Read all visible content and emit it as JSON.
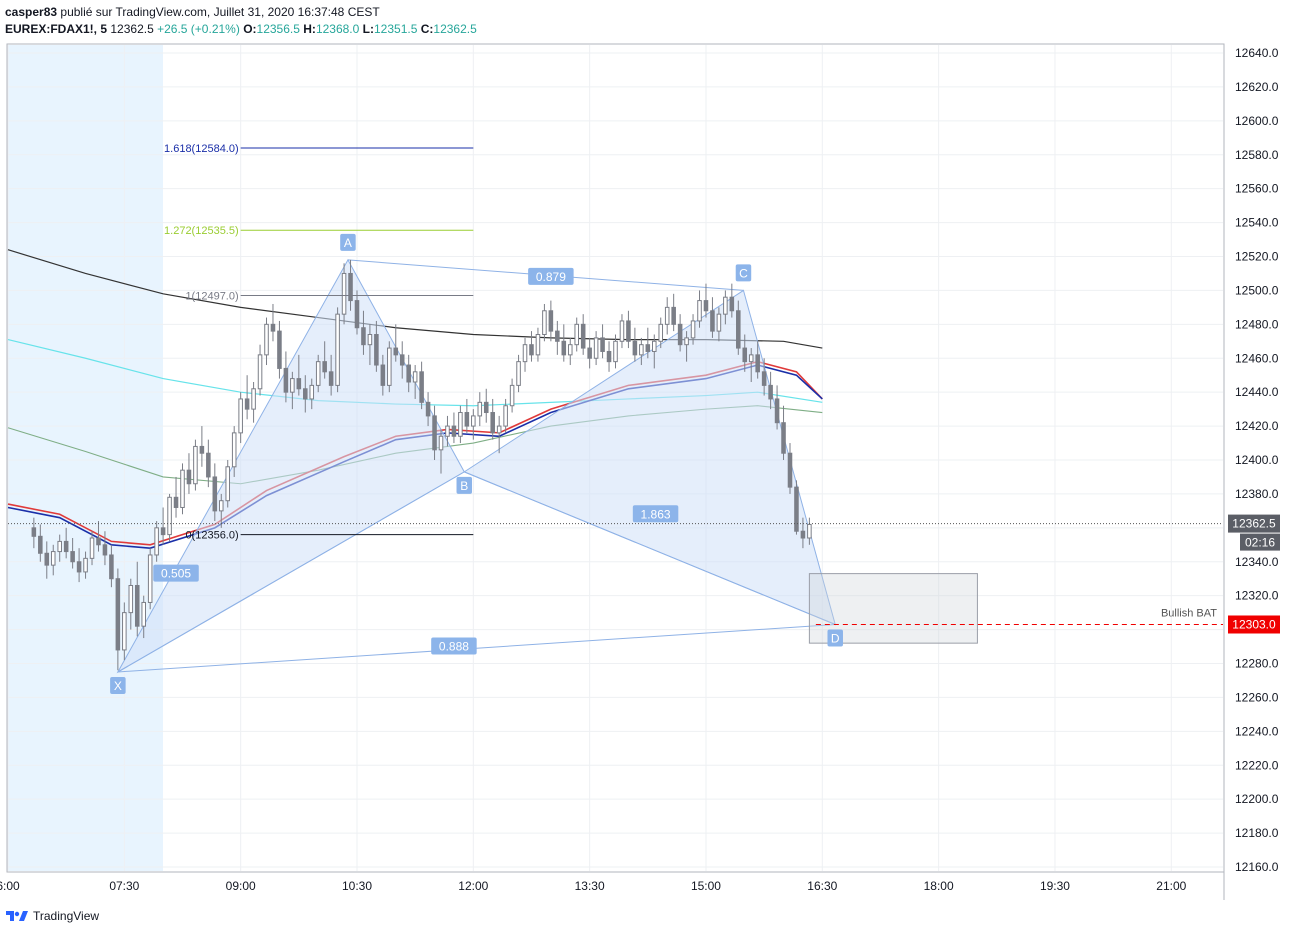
{
  "header": {
    "publisher": "casper83",
    "published_text": "publié sur TradingView.com, Juillet 31, 2020 16:37:48 CEST",
    "symbol": "EUREX:FDAX1!, 5",
    "last": "12362.5",
    "change": "+26.5 (+0.21%)",
    "o_label": "O:",
    "o_value": "12356.5",
    "h_label": "H:",
    "h_value": "12368.0",
    "l_label": "L:",
    "l_value": "12351.5",
    "c_label": "C:",
    "c_value": "12362.5"
  },
  "footer": {
    "brand": "TradingView",
    "logo_icon": "tradingview-logo-icon"
  },
  "colors": {
    "grid": "#eef0f3",
    "candle": "#7b7e87",
    "session_bg": "#e8f4fe",
    "pattern_fill": "#cfe0f7",
    "pattern_line": "#8fb2e6",
    "badge": "#8cb4ea",
    "black_ma": "#333333",
    "cyan_ma": "#67e3ea",
    "green_ma": "#7fae86",
    "red_ma": "#e03a3a",
    "blue_ma": "#1a2fa8",
    "price_tag": "#f00000"
  },
  "chart_data": {
    "type": "candlestick",
    "symbol": "EUREX:FDAX1!",
    "interval": "5",
    "ylim": [
      12160,
      12640
    ],
    "y_ticks": [
      "12640.0",
      "12620.0",
      "12600.0",
      "12580.0",
      "12560.0",
      "12540.0",
      "12520.0",
      "12500.0",
      "12480.0",
      "12460.0",
      "12440.0",
      "12420.0",
      "12400.0",
      "12380.0",
      "12360.0",
      "12340.0",
      "12320.0",
      "12300.0",
      "12280.0",
      "12260.0",
      "12240.0",
      "12220.0",
      "12200.0",
      "12180.0",
      "12160.0"
    ],
    "x_ticks": [
      "6:00",
      "07:30",
      "09:00",
      "10:30",
      "12:00",
      "13:30",
      "15:00",
      "16:30",
      "18:00",
      "19:30",
      "21:00"
    ],
    "x_tick_minutes": [
      360,
      450,
      540,
      630,
      720,
      810,
      900,
      990,
      1080,
      1170,
      1260
    ],
    "x_range_minutes": [
      360,
      1300
    ],
    "last_price": "12362.5",
    "countdown": "02:16",
    "target_price": "12303.0",
    "target_label": "Bullish BAT",
    "fib_levels": [
      {
        "label": "1.618(12584.0)",
        "value": 12584.0
      },
      {
        "label": "1.272(12535.5)",
        "value": 12535.5
      },
      {
        "label": "1(12497.0)",
        "value": 12497.0
      },
      {
        "label": "0(12356.0)",
        "value": 12356.0
      }
    ],
    "pattern_points": [
      {
        "name": "X",
        "t": 445,
        "p": 12275
      },
      {
        "name": "A",
        "t": 623,
        "p": 12518
      },
      {
        "name": "B",
        "t": 713,
        "p": 12393
      },
      {
        "name": "C",
        "t": 929,
        "p": 12500
      },
      {
        "name": "D",
        "t": 1000,
        "p": 12303
      }
    ],
    "ratios": [
      {
        "label": "0.505",
        "t": 490,
        "p": 12333
      },
      {
        "label": "0.879",
        "t": 780,
        "p": 12508
      },
      {
        "label": "1.863",
        "t": 861,
        "p": 12368
      },
      {
        "label": "0.888",
        "t": 705,
        "p": 12290
      }
    ],
    "candles": [
      [
        380,
        12360,
        12366,
        12348,
        12355
      ],
      [
        385,
        12355,
        12362,
        12340,
        12345
      ],
      [
        390,
        12345,
        12352,
        12330,
        12338
      ],
      [
        395,
        12338,
        12350,
        12332,
        12346
      ],
      [
        400,
        12346,
        12356,
        12340,
        12352
      ],
      [
        405,
        12352,
        12360,
        12342,
        12346
      ],
      [
        410,
        12346,
        12354,
        12336,
        12340
      ],
      [
        415,
        12340,
        12348,
        12328,
        12334
      ],
      [
        420,
        12334,
        12346,
        12330,
        12342
      ],
      [
        425,
        12342,
        12358,
        12338,
        12354
      ],
      [
        430,
        12354,
        12364,
        12346,
        12350
      ],
      [
        435,
        12350,
        12358,
        12338,
        12344
      ],
      [
        440,
        12344,
        12350,
        12325,
        12330
      ],
      [
        445,
        12330,
        12336,
        12276,
        12288
      ],
      [
        450,
        12288,
        12316,
        12282,
        12310
      ],
      [
        455,
        12310,
        12330,
        12300,
        12326
      ],
      [
        460,
        12326,
        12340,
        12296,
        12302
      ],
      [
        465,
        12302,
        12320,
        12295,
        12316
      ],
      [
        470,
        12316,
        12348,
        12312,
        12344
      ],
      [
        475,
        12344,
        12364,
        12340,
        12360
      ],
      [
        480,
        12360,
        12372,
        12350,
        12356
      ],
      [
        485,
        12356,
        12380,
        12352,
        12378
      ],
      [
        490,
        12378,
        12390,
        12366,
        12372
      ],
      [
        495,
        12372,
        12398,
        12368,
        12394
      ],
      [
        500,
        12394,
        12404,
        12380,
        12386
      ],
      [
        505,
        12386,
        12412,
        12382,
        12408
      ],
      [
        510,
        12408,
        12420,
        12396,
        12404
      ],
      [
        515,
        12404,
        12412,
        12384,
        12390
      ],
      [
        520,
        12390,
        12398,
        12364,
        12370
      ],
      [
        525,
        12370,
        12380,
        12360,
        12376
      ],
      [
        530,
        12376,
        12400,
        12372,
        12396
      ],
      [
        535,
        12396,
        12420,
        12390,
        12416
      ],
      [
        540,
        12416,
        12440,
        12410,
        12436
      ],
      [
        545,
        12436,
        12450,
        12424,
        12430
      ],
      [
        550,
        12430,
        12446,
        12422,
        12442
      ],
      [
        555,
        12442,
        12468,
        12438,
        12462
      ],
      [
        560,
        12462,
        12484,
        12456,
        12480
      ],
      [
        565,
        12480,
        12492,
        12470,
        12476
      ],
      [
        570,
        12476,
        12482,
        12448,
        12454
      ],
      [
        575,
        12454,
        12464,
        12434,
        12440
      ],
      [
        580,
        12440,
        12452,
        12430,
        12448
      ],
      [
        585,
        12448,
        12462,
        12438,
        12442
      ],
      [
        590,
        12442,
        12450,
        12428,
        12436
      ],
      [
        595,
        12436,
        12448,
        12430,
        12444
      ],
      [
        600,
        12444,
        12462,
        12440,
        12458
      ],
      [
        605,
        12458,
        12470,
        12448,
        12452
      ],
      [
        610,
        12452,
        12462,
        12438,
        12444
      ],
      [
        615,
        12444,
        12490,
        12440,
        12486
      ],
      [
        620,
        12486,
        12516,
        12480,
        12510
      ],
      [
        625,
        12510,
        12518,
        12488,
        12494
      ],
      [
        630,
        12494,
        12500,
        12474,
        12478
      ],
      [
        635,
        12478,
        12488,
        12462,
        12468
      ],
      [
        640,
        12468,
        12480,
        12456,
        12474
      ],
      [
        645,
        12474,
        12482,
        12452,
        12456
      ],
      [
        650,
        12456,
        12462,
        12438,
        12444
      ],
      [
        655,
        12444,
        12470,
        12440,
        12466
      ],
      [
        660,
        12466,
        12480,
        12458,
        12462
      ],
      [
        665,
        12462,
        12470,
        12448,
        12456
      ],
      [
        670,
        12456,
        12462,
        12440,
        12446
      ],
      [
        675,
        12446,
        12456,
        12436,
        12452
      ],
      [
        680,
        12452,
        12458,
        12430,
        12434
      ],
      [
        685,
        12434,
        12440,
        12420,
        12426
      ],
      [
        690,
        12426,
        12432,
        12400,
        12406
      ],
      [
        695,
        12406,
        12418,
        12392,
        12414
      ],
      [
        700,
        12414,
        12426,
        12408,
        12420
      ],
      [
        705,
        12420,
        12428,
        12410,
        12414
      ],
      [
        710,
        12414,
        12432,
        12410,
        12428
      ],
      [
        715,
        12428,
        12436,
        12416,
        12420
      ],
      [
        720,
        12420,
        12430,
        12412,
        12426
      ],
      [
        725,
        12426,
        12440,
        12420,
        12434
      ],
      [
        730,
        12434,
        12442,
        12422,
        12428
      ],
      [
        735,
        12428,
        12436,
        12412,
        12416
      ],
      [
        740,
        12416,
        12426,
        12404,
        12420
      ],
      [
        745,
        12420,
        12436,
        12416,
        12432
      ],
      [
        750,
        12432,
        12448,
        12428,
        12444
      ],
      [
        755,
        12444,
        12462,
        12440,
        12458
      ],
      [
        760,
        12458,
        12472,
        12452,
        12468
      ],
      [
        765,
        12468,
        12476,
        12458,
        12462
      ],
      [
        770,
        12462,
        12478,
        12458,
        12474
      ],
      [
        775,
        12474,
        12492,
        12470,
        12488
      ],
      [
        780,
        12488,
        12494,
        12470,
        12476
      ],
      [
        785,
        12476,
        12482,
        12462,
        12470
      ],
      [
        790,
        12470,
        12480,
        12458,
        12462
      ],
      [
        795,
        12462,
        12472,
        12456,
        12468
      ],
      [
        800,
        12468,
        12484,
        12464,
        12480
      ],
      [
        805,
        12480,
        12486,
        12462,
        12466
      ],
      [
        810,
        12466,
        12472,
        12454,
        12460
      ],
      [
        815,
        12460,
        12476,
        12456,
        12472
      ],
      [
        820,
        12472,
        12480,
        12460,
        12464
      ],
      [
        825,
        12464,
        12470,
        12452,
        12458
      ],
      [
        830,
        12458,
        12474,
        12454,
        12470
      ],
      [
        835,
        12470,
        12486,
        12466,
        12482
      ],
      [
        840,
        12482,
        12488,
        12466,
        12470
      ],
      [
        845,
        12470,
        12478,
        12458,
        12462
      ],
      [
        850,
        12462,
        12472,
        12456,
        12468
      ],
      [
        855,
        12468,
        12478,
        12460,
        12464
      ],
      [
        860,
        12464,
        12474,
        12454,
        12470
      ],
      [
        865,
        12470,
        12484,
        12466,
        12480
      ],
      [
        870,
        12480,
        12496,
        12474,
        12490
      ],
      [
        875,
        12490,
        12498,
        12476,
        12480
      ],
      [
        880,
        12480,
        12486,
        12464,
        12468
      ],
      [
        885,
        12468,
        12476,
        12458,
        12472
      ],
      [
        890,
        12472,
        12486,
        12468,
        12482
      ],
      [
        895,
        12482,
        12500,
        12478,
        12494
      ],
      [
        900,
        12494,
        12504,
        12484,
        12488
      ],
      [
        905,
        12488,
        12496,
        12472,
        12476
      ],
      [
        910,
        12476,
        12490,
        12470,
        12486
      ],
      [
        915,
        12486,
        12500,
        12480,
        12496
      ],
      [
        920,
        12496,
        12504,
        12484,
        12488
      ],
      [
        925,
        12488,
        12494,
        12462,
        12466
      ],
      [
        930,
        12466,
        12474,
        12452,
        12458
      ],
      [
        935,
        12458,
        12466,
        12446,
        12462
      ],
      [
        940,
        12462,
        12470,
        12448,
        12452
      ],
      [
        945,
        12452,
        12460,
        12438,
        12444
      ],
      [
        950,
        12444,
        12452,
        12430,
        12436
      ],
      [
        955,
        12436,
        12444,
        12418,
        12422
      ],
      [
        960,
        12422,
        12432,
        12400,
        12404
      ],
      [
        965,
        12404,
        12410,
        12380,
        12384
      ],
      [
        970,
        12384,
        12388,
        12356,
        12358
      ],
      [
        975,
        12358,
        12366,
        12348,
        12354
      ],
      [
        980,
        12354,
        12366,
        12350,
        12362
      ]
    ],
    "ma_black": [
      [
        360,
        12524
      ],
      [
        420,
        12510
      ],
      [
        480,
        12498
      ],
      [
        540,
        12490
      ],
      [
        600,
        12484
      ],
      [
        660,
        12478
      ],
      [
        720,
        12474
      ],
      [
        780,
        12472
      ],
      [
        840,
        12471
      ],
      [
        900,
        12471
      ],
      [
        960,
        12470
      ],
      [
        990,
        12466
      ]
    ],
    "ma_cyan": [
      [
        360,
        12471
      ],
      [
        420,
        12460
      ],
      [
        480,
        12448
      ],
      [
        540,
        12440
      ],
      [
        600,
        12435
      ],
      [
        660,
        12433
      ],
      [
        720,
        12432
      ],
      [
        780,
        12434
      ],
      [
        840,
        12436
      ],
      [
        900,
        12438
      ],
      [
        940,
        12440
      ],
      [
        990,
        12434
      ]
    ],
    "ma_green": [
      [
        360,
        12419
      ],
      [
        420,
        12405
      ],
      [
        480,
        12390
      ],
      [
        540,
        12386
      ],
      [
        600,
        12394
      ],
      [
        660,
        12404
      ],
      [
        720,
        12410
      ],
      [
        780,
        12420
      ],
      [
        840,
        12426
      ],
      [
        900,
        12430
      ],
      [
        940,
        12432
      ],
      [
        990,
        12428
      ]
    ],
    "ma_red": [
      [
        360,
        12374
      ],
      [
        400,
        12368
      ],
      [
        440,
        12352
      ],
      [
        470,
        12350
      ],
      [
        520,
        12362
      ],
      [
        560,
        12382
      ],
      [
        620,
        12402
      ],
      [
        660,
        12414
      ],
      [
        700,
        12418
      ],
      [
        740,
        12416
      ],
      [
        780,
        12430
      ],
      [
        840,
        12444
      ],
      [
        900,
        12450
      ],
      [
        940,
        12458
      ],
      [
        970,
        12452
      ],
      [
        990,
        12436
      ]
    ],
    "ma_blue": [
      [
        360,
        12372
      ],
      [
        400,
        12366
      ],
      [
        440,
        12350
      ],
      [
        470,
        12348
      ],
      [
        520,
        12360
      ],
      [
        560,
        12379
      ],
      [
        620,
        12399
      ],
      [
        660,
        12412
      ],
      [
        700,
        12416
      ],
      [
        740,
        12414
      ],
      [
        780,
        12428
      ],
      [
        840,
        12442
      ],
      [
        900,
        12448
      ],
      [
        940,
        12456
      ],
      [
        970,
        12450
      ],
      [
        990,
        12436
      ]
    ]
  }
}
